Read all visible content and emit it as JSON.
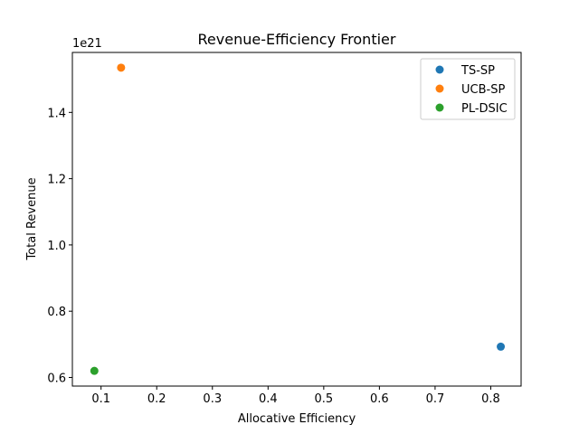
{
  "chart_data": {
    "type": "scatter",
    "title": "Revenue-Efficiency Frontier",
    "xlabel": "Allocative Efficiency",
    "ylabel": "Total Revenue",
    "y_offset_label": "1e21",
    "xlim": [
      0.0485,
      0.8545
    ],
    "ylim": [
      0.574,
      1.581
    ],
    "x_ticks": [
      0.1,
      0.2,
      0.3,
      0.4,
      0.5,
      0.6,
      0.7,
      0.8
    ],
    "x_tick_labels": [
      "0.1",
      "0.2",
      "0.3",
      "0.4",
      "0.5",
      "0.6",
      "0.7",
      "0.8"
    ],
    "y_ticks": [
      0.6,
      0.8,
      1.0,
      1.2,
      1.4
    ],
    "y_tick_labels": [
      "0.6",
      "0.8",
      "1.0",
      "1.2",
      "1.4"
    ],
    "grid": false,
    "legend_position": "top-right",
    "series": [
      {
        "name": "TS-SP",
        "color": "#1f77b4",
        "points": [
          {
            "x": 0.818,
            "y": 0.693
          }
        ]
      },
      {
        "name": "UCB-SP",
        "color": "#ff7f0e",
        "points": [
          {
            "x": 0.136,
            "y": 1.535
          }
        ]
      },
      {
        "name": "PL-DSIC",
        "color": "#2ca02c",
        "points": [
          {
            "x": 0.088,
            "y": 0.62
          }
        ]
      }
    ]
  }
}
